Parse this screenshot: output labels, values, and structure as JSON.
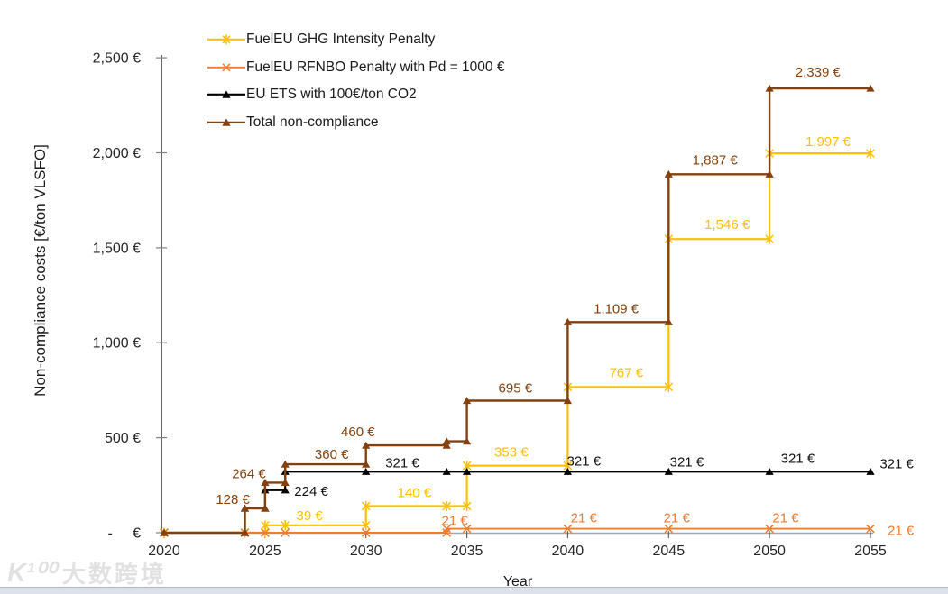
{
  "page": {
    "background": "#ffffff",
    "bottom_bar_color": "#dde1eb",
    "bottom_bar_border": "#aeb6c8"
  },
  "watermark": {
    "logo": "K¹⁰⁰",
    "text": "大数跨境"
  },
  "chart_data": {
    "type": "line",
    "subtype": "step",
    "title": "",
    "xlabel": "Year",
    "ylabel": "Non-compliance costs  [€/ton VLSFO]",
    "grid": false,
    "legend_position": "top-left",
    "xlim": [
      2020,
      2055
    ],
    "ylim": [
      0,
      2500
    ],
    "x_ticks": [
      2020,
      2025,
      2030,
      2035,
      2040,
      2045,
      2050,
      2055
    ],
    "y_ticks": [
      {
        "label": "2,500 €",
        "value": 2500
      },
      {
        "label": "2,000 €",
        "value": 2000
      },
      {
        "label": "1,500 €",
        "value": 1500
      },
      {
        "label": "1,000 €",
        "value": 1000
      },
      {
        "label": "500 €",
        "value": 500
      },
      {
        "label": "-     €",
        "value": 0
      }
    ],
    "axis_colors": {
      "y_axis": "#333333",
      "x_axis": "#a6a6a6",
      "tick": "#808080"
    },
    "series": [
      {
        "name": "FuelEU GHG Intensity Penalty",
        "color": "#FFC000",
        "marker": "asterisk",
        "width": 2.2,
        "points": [
          [
            2020,
            0
          ],
          [
            2024,
            0
          ],
          [
            2025,
            0
          ],
          [
            2025,
            39
          ],
          [
            2026,
            39
          ],
          [
            2030,
            39
          ],
          [
            2030,
            140
          ],
          [
            2034,
            140
          ],
          [
            2035,
            140
          ],
          [
            2035,
            353
          ],
          [
            2040,
            353
          ],
          [
            2040,
            767
          ],
          [
            2045,
            767
          ],
          [
            2045,
            1546
          ],
          [
            2050,
            1546
          ],
          [
            2050,
            1997
          ],
          [
            2055,
            1997
          ]
        ],
        "annotations": [
          {
            "text": "39 €",
            "year": 2027.2,
            "value": 39,
            "dy": -6
          },
          {
            "text": "140 €",
            "year": 2032.4,
            "value": 140,
            "dy": -10
          },
          {
            "text": "353 €",
            "year": 2037.2,
            "value": 353,
            "dy": -10
          },
          {
            "text": "767 €",
            "year": 2042.9,
            "value": 767,
            "dy": -11
          },
          {
            "text": "1,546 €",
            "year": 2047.9,
            "value": 1546,
            "dy": -11
          },
          {
            "text": "1,997 €",
            "year": 2052.9,
            "value": 1997,
            "dy": -8
          }
        ]
      },
      {
        "name": "FuelEU RFNBO Penalty with Pd = 1000 €",
        "color": "#ED7D31",
        "marker": "x",
        "width": 1.9,
        "points": [
          [
            2020,
            0
          ],
          [
            2024,
            0
          ],
          [
            2025,
            0
          ],
          [
            2026,
            0
          ],
          [
            2030,
            0
          ],
          [
            2034,
            0
          ],
          [
            2034,
            21
          ],
          [
            2035,
            21
          ],
          [
            2040,
            21
          ],
          [
            2045,
            21
          ],
          [
            2050,
            21
          ],
          [
            2055,
            21
          ]
        ],
        "annotations": [
          {
            "text": "21 €",
            "year": 2034.4,
            "value": 21,
            "dy": -4
          },
          {
            "text": "21 €",
            "year": 2040.8,
            "value": 21,
            "dy": -7
          },
          {
            "text": "21 €",
            "year": 2045.4,
            "value": 21,
            "dy": -7
          },
          {
            "text": "21 €",
            "year": 2050.8,
            "value": 21,
            "dy": -7
          },
          {
            "text": "21 €",
            "year": 2055.85,
            "value": 21,
            "dy": 7,
            "anchor": "start"
          }
        ]
      },
      {
        "name": "EU ETS with 100€/ton CO2",
        "color": "#000000",
        "marker": "triangle",
        "width": 2.1,
        "points": [
          [
            2020,
            0
          ],
          [
            2024,
            0
          ],
          [
            2024,
            128
          ],
          [
            2025,
            128
          ],
          [
            2025,
            224
          ],
          [
            2026,
            224
          ],
          [
            2026,
            321
          ],
          [
            2030,
            321
          ],
          [
            2034,
            321
          ],
          [
            2035,
            321
          ],
          [
            2040,
            321
          ],
          [
            2045,
            321
          ],
          [
            2050,
            321
          ],
          [
            2055,
            321
          ]
        ],
        "annotations": [
          {
            "text": "224 €",
            "year": 2026.45,
            "value": 224,
            "dy": 6,
            "anchor": "start"
          },
          {
            "text": "321 €",
            "year": 2031.8,
            "value": 321,
            "dy": -5
          },
          {
            "text": "321 €",
            "year": 2040.8,
            "value": 321,
            "dy": -7
          },
          {
            "text": "321 €",
            "year": 2045.9,
            "value": 321,
            "dy": -6
          },
          {
            "text": "321 €",
            "year": 2051.4,
            "value": 321,
            "dy": -10
          },
          {
            "text": "321 €",
            "year": 2056.3,
            "value": 321,
            "dy": -4
          }
        ]
      },
      {
        "name": "Total non-compliance",
        "color": "#84400E",
        "marker": "triangle",
        "width": 2.4,
        "points": [
          [
            2020,
            0
          ],
          [
            2024,
            0
          ],
          [
            2024,
            128
          ],
          [
            2025,
            128
          ],
          [
            2025,
            264
          ],
          [
            2026,
            264
          ],
          [
            2026,
            360
          ],
          [
            2030,
            360
          ],
          [
            2030,
            460
          ],
          [
            2034,
            460
          ],
          [
            2034,
            481
          ],
          [
            2035,
            481
          ],
          [
            2035,
            695
          ],
          [
            2040,
            695
          ],
          [
            2040,
            1109
          ],
          [
            2045,
            1109
          ],
          [
            2045,
            1887
          ],
          [
            2050,
            1887
          ],
          [
            2050,
            2339
          ],
          [
            2055,
            2339
          ]
        ],
        "annotations": [
          {
            "text": "128 €",
            "year": 2023.4,
            "value": 128,
            "dy": -5
          },
          {
            "text": "264 €",
            "year": 2024.2,
            "value": 264,
            "dy": -5
          },
          {
            "text": "360 €",
            "year": 2028.3,
            "value": 360,
            "dy": -6
          },
          {
            "text": "460 €",
            "year": 2029.6,
            "value": 460,
            "dy": -10
          },
          {
            "text": "695 €",
            "year": 2037.4,
            "value": 695,
            "dy": -9
          },
          {
            "text": "1,109 €",
            "year": 2042.4,
            "value": 1109,
            "dy": -10
          },
          {
            "text": "1,887 €",
            "year": 2047.3,
            "value": 1887,
            "dy": -11
          },
          {
            "text": "2,339 €",
            "year": 2052.4,
            "value": 2339,
            "dy": -13
          }
        ]
      }
    ]
  }
}
